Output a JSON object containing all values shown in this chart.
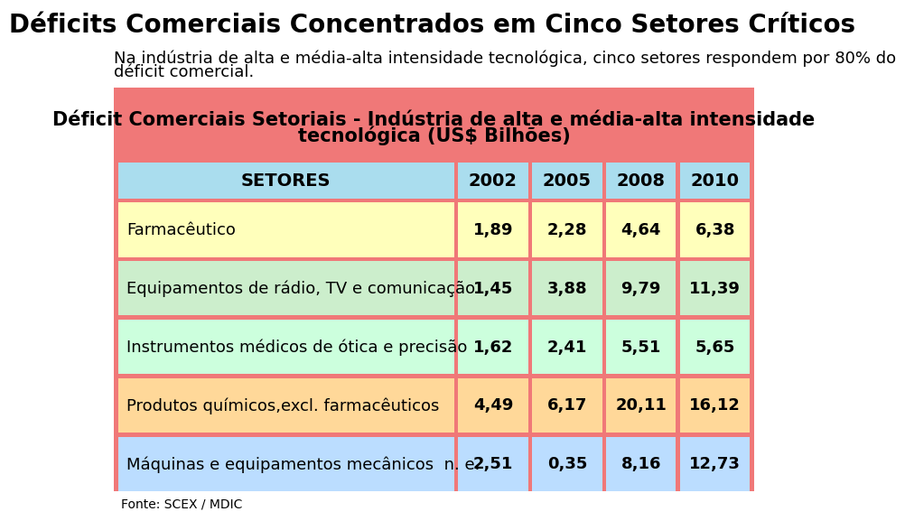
{
  "title": "Déficits Comerciais Concentrados em Cinco Setores Críticos",
  "subtitle_line1": "Na indústria de alta e média-alta intensidade tecnológica, cinco setores respondem por 80% do",
  "subtitle_line2": "déficit comercial.",
  "table_header_text_line1": "Déficit Comerciais Setoriais - Indústria de alta e média-alta intensidade",
  "table_header_text_line2": "tecnológica (US$ Bilhões)",
  "table_header_bg": "#F07878",
  "col_header_bg": "#AADDEE",
  "border_color": "#F07878",
  "columns": [
    "SETORES",
    "2002",
    "2005",
    "2008",
    "2010"
  ],
  "rows": [
    {
      "sector": "Farmacêutico",
      "values": [
        "1,89",
        "2,28",
        "4,64",
        "6,38"
      ],
      "sector_bg": "#FFFFBB",
      "value_bg": "#FFFFBB"
    },
    {
      "sector": "Equipamentos de rádio, TV e comunicação",
      "values": [
        "1,45",
        "3,88",
        "9,79",
        "11,39"
      ],
      "sector_bg": "#CCEECC",
      "value_bg": "#CCEECC"
    },
    {
      "sector": "Instrumentos médicos de ótica e precisão",
      "values": [
        "1,62",
        "2,41",
        "5,51",
        "5,65"
      ],
      "sector_bg": "#CCFFDD",
      "value_bg": "#CCFFDD"
    },
    {
      "sector": "Produtos químicos,excl. farmacêuticos",
      "values": [
        "4,49",
        "6,17",
        "20,11",
        "16,12"
      ],
      "sector_bg": "#FFD899",
      "value_bg": "#FFD899"
    },
    {
      "sector": "Máquinas e equipamentos mecânicos  n. e.",
      "values": [
        "2,51",
        "0,35",
        "8,16",
        "12,73"
      ],
      "sector_bg": "#BBDDFF",
      "value_bg": "#BBDDFF"
    }
  ],
  "footer": "Fonte: SCEX / MDIC",
  "title_fontsize": 20,
  "subtitle_fontsize": 13,
  "table_header_fontsize": 15,
  "col_header_fontsize": 14,
  "cell_fontsize": 13
}
